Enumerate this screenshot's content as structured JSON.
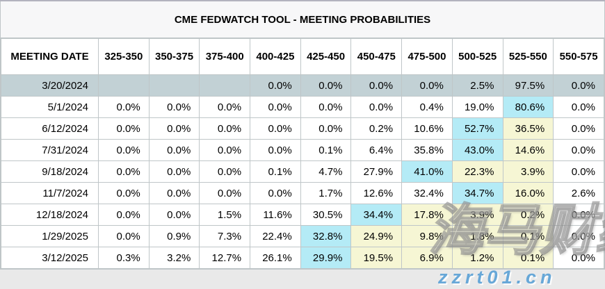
{
  "chart_data": {
    "type": "table",
    "title": "CME FEDWATCH TOOL - MEETING PROBABILITIES",
    "columns": [
      "MEETING DATE",
      "325-350",
      "350-375",
      "375-400",
      "400-425",
      "425-450",
      "450-475",
      "475-500",
      "500-525",
      "525-550",
      "550-575"
    ],
    "rows": [
      {
        "date": "3/20/2024",
        "selected": true,
        "values": [
          "",
          "",
          "",
          "0.0%",
          "0.0%",
          "0.0%",
          "0.0%",
          "2.5%",
          "97.5%",
          "0.0%"
        ],
        "highlights": [
          "",
          "",
          "",
          "",
          "",
          "",
          "",
          "",
          "",
          ""
        ]
      },
      {
        "date": "5/1/2024",
        "selected": false,
        "values": [
          "0.0%",
          "0.0%",
          "0.0%",
          "0.0%",
          "0.0%",
          "0.0%",
          "0.4%",
          "19.0%",
          "80.6%",
          "0.0%"
        ],
        "highlights": [
          "",
          "",
          "",
          "",
          "",
          "",
          "",
          "",
          "cyan",
          ""
        ]
      },
      {
        "date": "6/12/2024",
        "selected": false,
        "values": [
          "0.0%",
          "0.0%",
          "0.0%",
          "0.0%",
          "0.0%",
          "0.2%",
          "10.6%",
          "52.7%",
          "36.5%",
          "0.0%"
        ],
        "highlights": [
          "",
          "",
          "",
          "",
          "",
          "",
          "",
          "cyan",
          "yellow",
          ""
        ]
      },
      {
        "date": "7/31/2024",
        "selected": false,
        "values": [
          "0.0%",
          "0.0%",
          "0.0%",
          "0.0%",
          "0.1%",
          "6.4%",
          "35.8%",
          "43.0%",
          "14.6%",
          "0.0%"
        ],
        "highlights": [
          "",
          "",
          "",
          "",
          "",
          "",
          "",
          "cyan",
          "yellow",
          ""
        ]
      },
      {
        "date": "9/18/2024",
        "selected": false,
        "values": [
          "0.0%",
          "0.0%",
          "0.0%",
          "0.1%",
          "4.7%",
          "27.9%",
          "41.0%",
          "22.3%",
          "3.9%",
          "0.0%"
        ],
        "highlights": [
          "",
          "",
          "",
          "",
          "",
          "",
          "cyan",
          "yellow",
          "yellow",
          ""
        ]
      },
      {
        "date": "11/7/2024",
        "selected": false,
        "values": [
          "0.0%",
          "0.0%",
          "0.0%",
          "0.0%",
          "1.7%",
          "12.6%",
          "32.4%",
          "34.7%",
          "16.0%",
          "2.6%"
        ],
        "highlights": [
          "",
          "",
          "",
          "",
          "",
          "",
          "",
          "cyan",
          "yellow",
          ""
        ]
      },
      {
        "date": "12/18/2024",
        "selected": false,
        "values": [
          "0.0%",
          "0.0%",
          "1.5%",
          "11.6%",
          "30.5%",
          "34.4%",
          "17.8%",
          "3.9%",
          "0.2%",
          "0.0%"
        ],
        "highlights": [
          "",
          "",
          "",
          "",
          "",
          "cyan",
          "yellow",
          "yellow",
          "yellow",
          ""
        ]
      },
      {
        "date": "1/29/2025",
        "selected": false,
        "values": [
          "0.0%",
          "0.9%",
          "7.3%",
          "22.4%",
          "32.8%",
          "24.9%",
          "9.8%",
          "1.8%",
          "0.1%",
          "0.0%"
        ],
        "highlights": [
          "",
          "",
          "",
          "",
          "cyan",
          "yellow",
          "yellow",
          "yellow",
          "yellow",
          ""
        ]
      },
      {
        "date": "3/12/2025",
        "selected": false,
        "values": [
          "0.3%",
          "3.2%",
          "12.7%",
          "26.1%",
          "29.9%",
          "19.5%",
          "6.9%",
          "1.2%",
          "0.1%",
          "0.0%"
        ],
        "highlights": [
          "",
          "",
          "",
          "",
          "cyan",
          "yellow",
          "yellow",
          "yellow",
          "yellow",
          ""
        ]
      }
    ]
  },
  "colors": {
    "selected_row": "#c2d1d5",
    "cyan_highlight": "#b4ebf6",
    "yellow_highlight": "#f6f6d4",
    "border": "#bfc6c8",
    "title_bg": "#f7f7f8",
    "page_bg": "#e9e9e9",
    "watermark_blue": "#60a3d6"
  },
  "watermarks": {
    "chinese": "海马财经",
    "url": "zzrt01.cn"
  }
}
